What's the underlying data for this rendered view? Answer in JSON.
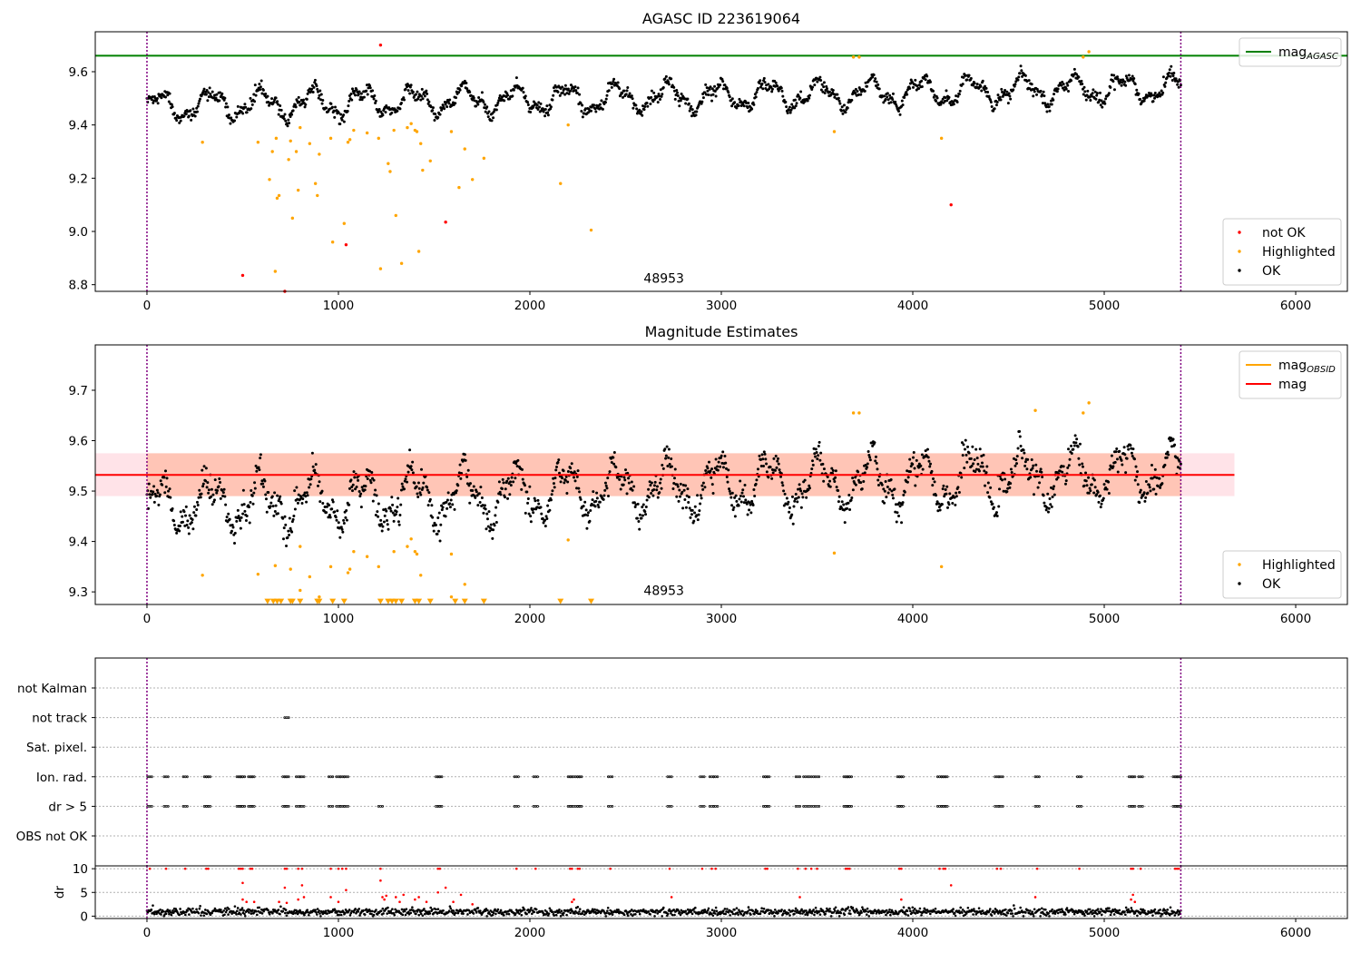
{
  "chart_data": [
    {
      "type": "scatter",
      "title": "AGASC ID 223619064",
      "xlim": [
        -270,
        6270
      ],
      "ylim": [
        8.775,
        9.75
      ],
      "xticks": [
        0,
        1000,
        2000,
        3000,
        4000,
        5000,
        6000
      ],
      "yticks": [
        8.8,
        9.0,
        9.2,
        9.4,
        9.6
      ],
      "annotation": {
        "text": "48953",
        "x": 2700,
        "y": 8.8
      },
      "vlines": [
        0,
        5400
      ],
      "hlines": [
        {
          "name": "mag",
          "subscript": "AGASC",
          "y": 9.66,
          "color": "#008000"
        }
      ],
      "legend_upper": {
        "placement": "upper-right",
        "entries": [
          {
            "name": "mag",
            "subscript": "AGASC",
            "color": "#008000"
          }
        ]
      },
      "legend_lower": {
        "placement": "lower-right",
        "entries": [
          {
            "name": "not OK",
            "color": "#ff0000"
          },
          {
            "name": "Highlighted",
            "color": "#ffa500"
          },
          {
            "name": "OK",
            "color": "#000000"
          }
        ]
      },
      "series_ok": {
        "name": "OK",
        "color": "#000000",
        "x_start": 0,
        "x_end": 5400,
        "n": 1500,
        "base": 9.47,
        "trend": 0.07,
        "noise": 0.025
      },
      "series_highlighted": {
        "name": "Highlighted",
        "color": "#ffa500",
        "points": [
          [
            290,
            9.335
          ],
          [
            580,
            9.335
          ],
          [
            640,
            9.195
          ],
          [
            655,
            9.3
          ],
          [
            670,
            8.85
          ],
          [
            675,
            9.35
          ],
          [
            680,
            9.125
          ],
          [
            690,
            9.135
          ],
          [
            740,
            9.27
          ],
          [
            750,
            9.34
          ],
          [
            760,
            9.05
          ],
          [
            780,
            9.3
          ],
          [
            790,
            9.155
          ],
          [
            800,
            9.39
          ],
          [
            850,
            9.33
          ],
          [
            880,
            9.18
          ],
          [
            890,
            9.135
          ],
          [
            900,
            9.29
          ],
          [
            960,
            9.35
          ],
          [
            970,
            8.96
          ],
          [
            1030,
            9.03
          ],
          [
            1050,
            9.335
          ],
          [
            1060,
            9.345
          ],
          [
            1080,
            9.38
          ],
          [
            1150,
            9.37
          ],
          [
            1210,
            9.35
          ],
          [
            1220,
            8.86
          ],
          [
            1260,
            9.255
          ],
          [
            1270,
            9.225
          ],
          [
            1290,
            9.38
          ],
          [
            1300,
            9.06
          ],
          [
            1330,
            8.88
          ],
          [
            1360,
            9.39
          ],
          [
            1380,
            9.405
          ],
          [
            1400,
            9.38
          ],
          [
            1410,
            9.375
          ],
          [
            1420,
            8.925
          ],
          [
            1430,
            9.33
          ],
          [
            1440,
            9.23
          ],
          [
            1480,
            9.265
          ],
          [
            1590,
            9.375
          ],
          [
            1630,
            9.165
          ],
          [
            1660,
            9.31
          ],
          [
            1700,
            9.195
          ],
          [
            1760,
            9.275
          ],
          [
            2160,
            9.18
          ],
          [
            2200,
            9.4
          ],
          [
            2320,
            9.005
          ],
          [
            3590,
            9.375
          ],
          [
            3690,
            9.655
          ],
          [
            3720,
            9.655
          ],
          [
            4150,
            9.35
          ],
          [
            4890,
            9.655
          ],
          [
            4920,
            9.675
          ]
        ]
      },
      "series_not_ok": {
        "name": "not OK",
        "color": "#ff0000",
        "points": [
          [
            500,
            8.835
          ],
          [
            720,
            8.775
          ],
          [
            1040,
            8.95
          ],
          [
            1220,
            9.7
          ],
          [
            1560,
            9.035
          ],
          [
            4200,
            9.1
          ]
        ]
      }
    },
    {
      "type": "scatter",
      "title": "Magnitude Estimates",
      "xlim": [
        -270,
        6270
      ],
      "ylim": [
        9.275,
        9.79
      ],
      "xticks": [
        0,
        1000,
        2000,
        3000,
        4000,
        5000,
        6000
      ],
      "yticks": [
        9.3,
        9.4,
        9.5,
        9.6,
        9.7
      ],
      "annotation": {
        "text": "48953",
        "x": 2700,
        "y": 9.29
      },
      "vlines": [
        0,
        5400
      ],
      "bands": [
        {
          "x_start": -270,
          "x_end": 5680,
          "y_low": 9.49,
          "y_high": 9.575,
          "color": "#ffc0cb"
        },
        {
          "x_start": 0,
          "x_end": 5400,
          "y_low": 9.49,
          "y_high": 9.575,
          "color": "#ffa07a"
        }
      ],
      "hlines": [
        {
          "name": "mag",
          "y": 9.532,
          "color": "#ff0000",
          "x_start": -270,
          "x_end": 5680
        }
      ],
      "legend_upper": {
        "placement": "upper-right",
        "entries": [
          {
            "name": "mag",
            "subscript": "OBSID",
            "color": "#ffa500"
          },
          {
            "name": "mag",
            "color": "#ff0000"
          }
        ]
      },
      "legend_lower": {
        "placement": "lower-right",
        "entries": [
          {
            "name": "Highlighted",
            "color": "#ffa500"
          },
          {
            "name": "OK",
            "color": "#000000"
          }
        ]
      },
      "series_ok": {
        "name": "OK",
        "color": "#000000",
        "x_start": 0,
        "x_end": 5400,
        "n": 1500,
        "base": 9.47,
        "trend": 0.07,
        "noise": 0.03
      },
      "series_highlighted": {
        "name": "Highlighted",
        "color": "#ffa500",
        "points": [
          [
            290,
            9.333
          ],
          [
            580,
            9.335
          ],
          [
            670,
            9.352
          ],
          [
            750,
            9.345
          ],
          [
            800,
            9.39
          ],
          [
            800,
            9.303
          ],
          [
            850,
            9.33
          ],
          [
            900,
            9.29
          ],
          [
            960,
            9.35
          ],
          [
            1050,
            9.338
          ],
          [
            1060,
            9.345
          ],
          [
            1080,
            9.38
          ],
          [
            1150,
            9.37
          ],
          [
            1210,
            9.35
          ],
          [
            1290,
            9.38
          ],
          [
            1360,
            9.39
          ],
          [
            1380,
            9.405
          ],
          [
            1400,
            9.38
          ],
          [
            1410,
            9.375
          ],
          [
            1430,
            9.333
          ],
          [
            1590,
            9.375
          ],
          [
            1590,
            9.29
          ],
          [
            1660,
            9.315
          ],
          [
            2200,
            9.403
          ],
          [
            3590,
            9.377
          ],
          [
            3690,
            9.655
          ],
          [
            3720,
            9.655
          ],
          [
            4150,
            9.35
          ],
          [
            4640,
            9.66
          ],
          [
            4890,
            9.655
          ],
          [
            4920,
            9.675
          ]
        ]
      },
      "series_lower_limits": {
        "name": "Highlighted",
        "color": "#ffa500",
        "y": 9.281,
        "x": [
          630,
          660,
          680,
          700,
          750,
          760,
          800,
          890,
          900,
          970,
          1030,
          1220,
          1260,
          1280,
          1300,
          1330,
          1400,
          1420,
          1480,
          1610,
          1660,
          1760,
          2160,
          2320
        ]
      }
    },
    {
      "type": "scatter",
      "title": "",
      "xlim": [
        -270,
        6270
      ],
      "categories": [
        "not Kalman",
        "not track",
        "Sat. pixel.",
        "Ion. rad.",
        "dr > 5",
        "OBS not OK"
      ],
      "vlines": [
        0,
        5400
      ],
      "flag_events": {
        "not Kalman": [],
        "not track": [
          730
        ],
        "Sat. pixel.": [],
        "Ion. rad.": [
          15,
          100,
          200,
          310,
          320,
          480,
          490,
          500,
          540,
          550,
          720,
          730,
          790,
          810,
          960,
          1000,
          1020,
          1040,
          1520,
          1530,
          1930,
          2030,
          2210,
          2220,
          2250,
          2260,
          2420,
          2730,
          2900,
          2950,
          2970,
          3230,
          3240,
          3400,
          3440,
          3470,
          3500,
          3650,
          3660,
          3670,
          3930,
          3940,
          4140,
          4160,
          4170,
          4440,
          4460,
          4650,
          4870,
          5140,
          5150,
          5190,
          5370,
          5380,
          5390
        ],
        "dr > 5": [
          15,
          100,
          200,
          310,
          320,
          480,
          490,
          500,
          540,
          550,
          720,
          730,
          790,
          810,
          960,
          1000,
          1020,
          1040,
          1220,
          1520,
          1530,
          1930,
          2030,
          2210,
          2220,
          2250,
          2260,
          2420,
          2730,
          2900,
          2950,
          2970,
          3230,
          3240,
          3400,
          3440,
          3470,
          3500,
          3650,
          3660,
          3670,
          3930,
          3940,
          4140,
          4160,
          4170,
          4440,
          4460,
          4650,
          4870,
          5140,
          5150,
          5190,
          5370,
          5380,
          5390
        ],
        "OBS not OK": []
      }
    },
    {
      "type": "scatter",
      "title": "",
      "xlim": [
        -270,
        6270
      ],
      "ylabel": "dr",
      "ylim": [
        -0.5,
        10.6
      ],
      "yticks": [
        0,
        5,
        10
      ],
      "xticks": [
        0,
        1000,
        2000,
        3000,
        4000,
        5000,
        6000
      ],
      "vlines": [
        0,
        5400
      ],
      "series_ok": {
        "name": "OK",
        "color": "#000000",
        "x_start": 0,
        "x_end": 5400,
        "n": 1400,
        "base": 0.9,
        "noise": 0.7
      },
      "series_clipped": {
        "name": "not OK",
        "color": "#ff0000",
        "y": 10,
        "x": [
          15,
          100,
          200,
          310,
          320,
          480,
          490,
          500,
          540,
          550,
          720,
          730,
          790,
          810,
          960,
          1000,
          1020,
          1040,
          1220,
          1520,
          1530,
          1930,
          2030,
          2210,
          2220,
          2250,
          2260,
          2420,
          2730,
          2900,
          2950,
          2970,
          3230,
          3240,
          3400,
          3440,
          3470,
          3500,
          3650,
          3660,
          3670,
          3930,
          3940,
          4140,
          4160,
          4170,
          4440,
          4460,
          4650,
          4870,
          5140,
          5150,
          5190,
          5370,
          5380,
          5390
        ]
      },
      "series_not_ok": {
        "name": "not OK",
        "color": "#ff0000",
        "points": [
          [
            500,
            7
          ],
          [
            500,
            3.5
          ],
          [
            520,
            3
          ],
          [
            560,
            3
          ],
          [
            690,
            3
          ],
          [
            720,
            6
          ],
          [
            730,
            2.8
          ],
          [
            790,
            3.5
          ],
          [
            810,
            6.5
          ],
          [
            820,
            4
          ],
          [
            960,
            4
          ],
          [
            1000,
            3
          ],
          [
            1040,
            5.5
          ],
          [
            1220,
            7.5
          ],
          [
            1230,
            4
          ],
          [
            1240,
            3.5
          ],
          [
            1250,
            4.3
          ],
          [
            1300,
            4
          ],
          [
            1320,
            3
          ],
          [
            1340,
            4.5
          ],
          [
            1400,
            3.5
          ],
          [
            1420,
            4
          ],
          [
            1460,
            3
          ],
          [
            1520,
            5
          ],
          [
            1560,
            6
          ],
          [
            1600,
            3
          ],
          [
            1640,
            4.5
          ],
          [
            1700,
            2.5
          ],
          [
            2220,
            3
          ],
          [
            2230,
            3.5
          ],
          [
            2740,
            4
          ],
          [
            3410,
            4
          ],
          [
            3940,
            3.5
          ],
          [
            4200,
            6.5
          ],
          [
            4640,
            4
          ],
          [
            5140,
            3.5
          ],
          [
            5150,
            4.5
          ],
          [
            5160,
            3
          ]
        ]
      }
    }
  ]
}
